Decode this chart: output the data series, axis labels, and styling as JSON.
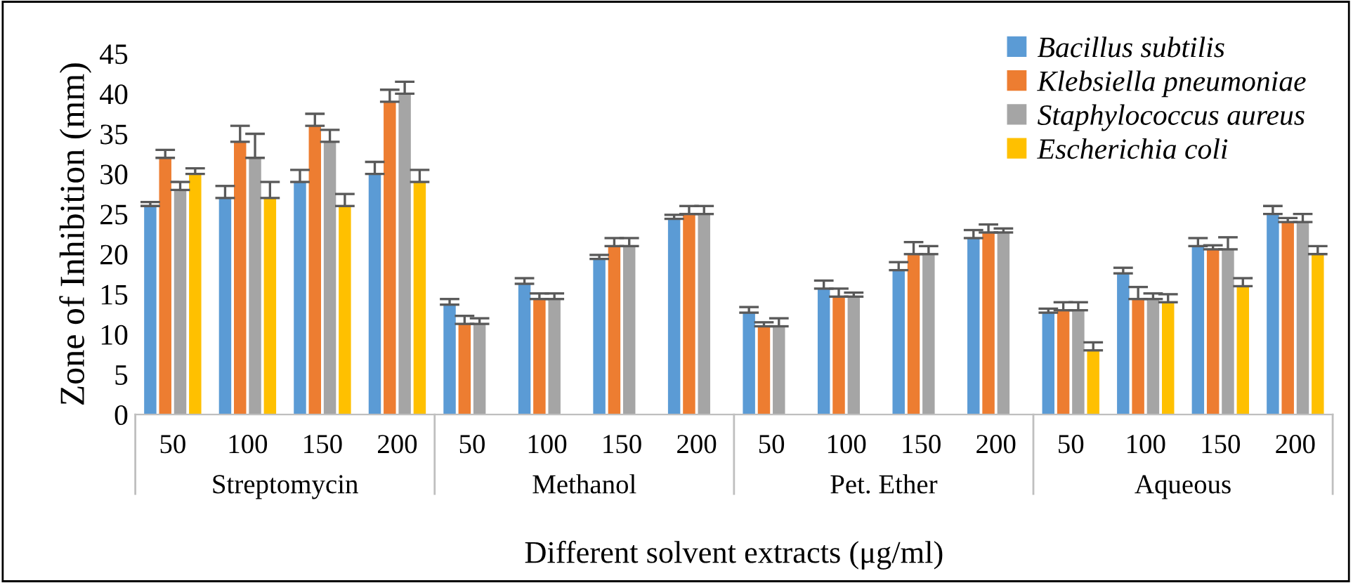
{
  "chart_data": {
    "type": "bar",
    "xlabel": "Different solvent extracts (μg/ml)",
    "ylabel": "Zone of Inhibition (mm)",
    "categories": [
      "50",
      "100",
      "150",
      "200",
      "50",
      "100",
      "150",
      "200",
      "50",
      "100",
      "150",
      "200",
      "50",
      "100",
      "150",
      "200"
    ],
    "annotations": [
      "Streptomycin",
      "Methanol",
      "Pet. Ether",
      "Aqueous"
    ],
    "series": [
      {
        "name": "Bacillus subtilis",
        "color": "#5b9bd5",
        "values": [
          26,
          27,
          29,
          30,
          13.7,
          16.3,
          19.4,
          24.4,
          12.7,
          15.7,
          18,
          22,
          12.7,
          17.6,
          21,
          25
        ],
        "errors": [
          [
            26,
            26.5
          ],
          [
            27,
            28.5
          ],
          [
            29,
            30.5
          ],
          [
            30,
            31.5
          ],
          [
            13.7,
            14.4
          ],
          [
            16.3,
            17
          ],
          [
            19.4,
            19.9
          ],
          [
            24.4,
            24.9
          ],
          [
            12.7,
            13.4
          ],
          [
            15.7,
            16.7
          ],
          [
            18,
            19
          ],
          [
            22,
            23
          ],
          [
            12.7,
            13.2
          ],
          [
            17.6,
            18.3
          ],
          [
            21,
            22
          ],
          [
            25,
            26
          ]
        ]
      },
      {
        "name": "Klebsiella pneumoniae",
        "color": "#ed7d31",
        "values": [
          32,
          34,
          36,
          39,
          11.3,
          14.4,
          21,
          25,
          11,
          14.7,
          20,
          22.7,
          13,
          14.4,
          20.6,
          24
        ],
        "errors": [
          [
            32,
            33
          ],
          [
            34,
            36
          ],
          [
            36,
            37.5
          ],
          [
            39,
            40.5
          ],
          [
            11.3,
            12.3
          ],
          [
            14.4,
            15.1
          ],
          [
            21,
            22
          ],
          [
            25,
            26
          ],
          [
            11,
            11.5
          ],
          [
            14.7,
            15.7
          ],
          [
            20,
            21.5
          ],
          [
            22.7,
            23.7
          ],
          [
            13,
            14
          ],
          [
            14.4,
            15.9
          ],
          [
            20.6,
            21.1
          ],
          [
            24,
            24.5
          ]
        ]
      },
      {
        "name": "Staphylococcus aureus",
        "color": "#a5a5a5",
        "values": [
          28,
          32,
          34,
          40,
          11.3,
          14.4,
          21,
          25,
          11,
          14.7,
          20,
          22.7,
          13,
          14.4,
          20.6,
          24
        ],
        "errors": [
          [
            28,
            29
          ],
          [
            32,
            35
          ],
          [
            34,
            35.5
          ],
          [
            40,
            41.5
          ],
          [
            11.3,
            12
          ],
          [
            14.4,
            15.1
          ],
          [
            21,
            22
          ],
          [
            25,
            26
          ],
          [
            11,
            12
          ],
          [
            14.7,
            15.2
          ],
          [
            20,
            21
          ],
          [
            22.7,
            23.2
          ],
          [
            13,
            14
          ],
          [
            14.4,
            15.1
          ],
          [
            20.6,
            22.1
          ],
          [
            24,
            25
          ]
        ]
      },
      {
        "name": "Escherichia coli",
        "color": "#ffc000",
        "values": [
          30,
          27,
          26,
          29,
          null,
          null,
          null,
          null,
          null,
          null,
          null,
          null,
          8,
          14,
          16,
          20
        ],
        "errors": [
          [
            30,
            30.7
          ],
          [
            27,
            29
          ],
          [
            26,
            27.5
          ],
          [
            29,
            30.5
          ],
          null,
          null,
          null,
          null,
          null,
          null,
          null,
          null,
          [
            8,
            9
          ],
          [
            14,
            15
          ],
          [
            16,
            17
          ],
          [
            20,
            21
          ]
        ]
      }
    ],
    "ylim": [
      0,
      45
    ],
    "yticks": [
      0,
      5,
      10,
      15,
      20,
      25,
      30,
      35,
      40,
      45
    ],
    "grid": false,
    "legend": "top right"
  }
}
